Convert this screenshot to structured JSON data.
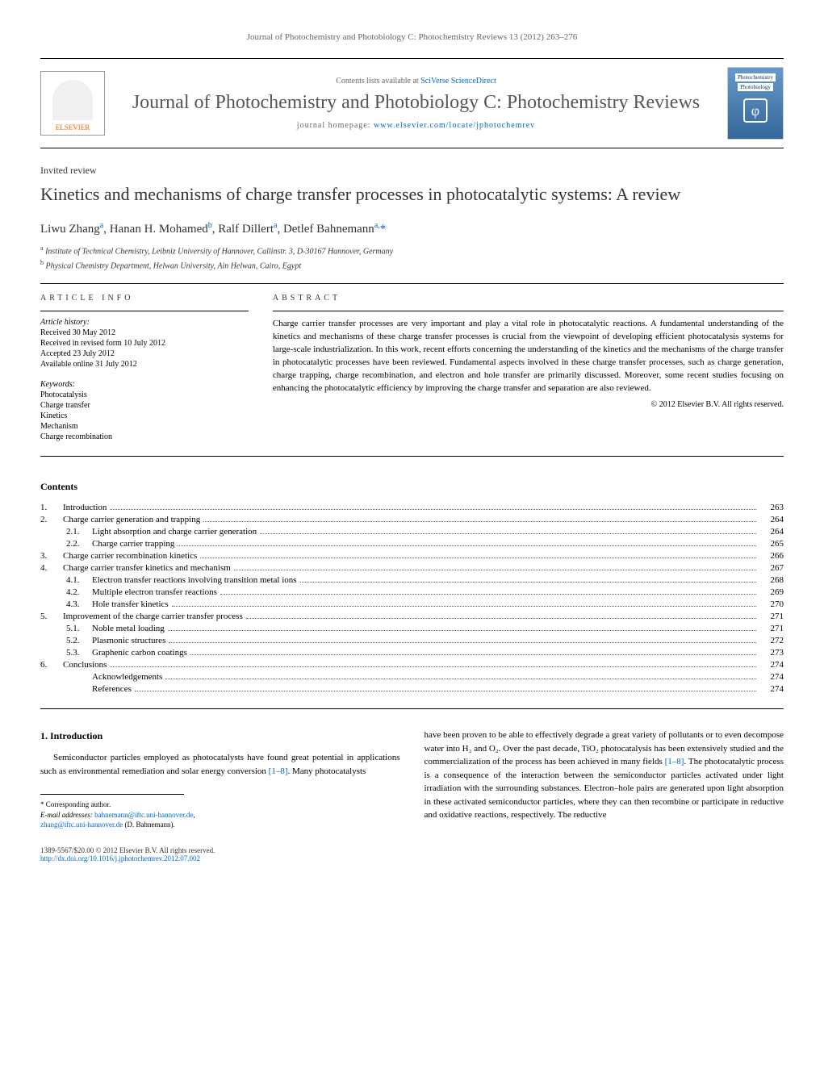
{
  "header": {
    "citation": "Journal of Photochemistry and Photobiology C: Photochemistry Reviews 13 (2012) 263–276",
    "contents_prefix": "Contents lists available at ",
    "contents_link": "SciVerse ScienceDirect",
    "journal_title": "Journal of Photochemistry and Photobiology C: Photochemistry Reviews",
    "homepage_prefix": "journal homepage: ",
    "homepage_link": "www.elsevier.com/locate/jphotochemrev",
    "publisher": "ELSEVIER",
    "cover_line1": "Photochemistry",
    "cover_line2": "Photobiology"
  },
  "article": {
    "type": "Invited review",
    "title": "Kinetics and mechanisms of charge transfer processes in photocatalytic systems: A review",
    "authors_html": "Liwu Zhang<sup>a</sup>, Hanan H. Mohamed<sup>b</sup>, Ralf Dillert<sup>a</sup>, Detlef Bahnemann<sup>a,</sup><span class='asterisk'>*</span>",
    "affiliations": [
      {
        "sup": "a",
        "text": "Institute of Technical Chemistry, Leibniz University of Hannover, Callinstr. 3, D-30167 Hannover, Germany"
      },
      {
        "sup": "b",
        "text": "Physical Chemistry Department, Helwan University, Ain Helwan, Cairo, Egypt"
      }
    ]
  },
  "info": {
    "heading": "ARTICLE INFO",
    "history_label": "Article history:",
    "history": [
      "Received 30 May 2012",
      "Received in revised form 10 July 2012",
      "Accepted 23 July 2012",
      "Available online 31 July 2012"
    ],
    "keywords_label": "Keywords:",
    "keywords": [
      "Photocatalysis",
      "Charge transfer",
      "Kinetics",
      "Mechanism",
      "Charge recombination"
    ]
  },
  "abstract": {
    "heading": "ABSTRACT",
    "text": "Charge carrier transfer processes are very important and play a vital role in photocatalytic reactions. A fundamental understanding of the kinetics and mechanisms of these charge transfer processes is crucial from the viewpoint of developing efficient photocatalysis systems for large-scale industrialization. In this work, recent efforts concerning the understanding of the kinetics and the mechanisms of the charge transfer in photocatalytic processes have been reviewed. Fundamental aspects involved in these charge transfer processes, such as charge generation, charge trapping, charge recombination, and electron and hole transfer are primarily discussed. Moreover, some recent studies focusing on enhancing the photocatalytic efficiency by improving the charge transfer and separation are also reviewed.",
    "copyright": "© 2012 Elsevier B.V. All rights reserved."
  },
  "contents": {
    "heading": "Contents",
    "items": [
      {
        "num": "1.",
        "label": "Introduction",
        "page": "263"
      },
      {
        "num": "2.",
        "label": "Charge carrier generation and trapping",
        "page": "264"
      },
      {
        "num": "2.1.",
        "label": "Light absorption and charge carrier generation",
        "page": "264",
        "sub": true
      },
      {
        "num": "2.2.",
        "label": "Charge carrier trapping",
        "page": "265",
        "sub": true
      },
      {
        "num": "3.",
        "label": "Charge carrier recombination kinetics",
        "page": "266"
      },
      {
        "num": "4.",
        "label": "Charge carrier transfer kinetics and mechanism",
        "page": "267"
      },
      {
        "num": "4.1.",
        "label": "Electron transfer reactions involving transition metal ions",
        "page": "268",
        "sub": true
      },
      {
        "num": "4.2.",
        "label": "Multiple electron transfer reactions",
        "page": "269",
        "sub": true
      },
      {
        "num": "4.3.",
        "label": "Hole transfer kinetics",
        "page": "270",
        "sub": true
      },
      {
        "num": "5.",
        "label": "Improvement of the charge carrier transfer process",
        "page": "271"
      },
      {
        "num": "5.1.",
        "label": "Noble metal loading",
        "page": "271",
        "sub": true
      },
      {
        "num": "5.2.",
        "label": "Plasmonic structures",
        "page": "272",
        "sub": true
      },
      {
        "num": "5.3.",
        "label": "Graphenic carbon coatings",
        "page": "273",
        "sub": true
      },
      {
        "num": "6.",
        "label": "Conclusions",
        "page": "274"
      },
      {
        "num": "",
        "label": "Acknowledgements",
        "page": "274",
        "sub": true
      },
      {
        "num": "",
        "label": "References",
        "page": "274",
        "sub": true
      }
    ]
  },
  "body": {
    "section_heading": "1. Introduction",
    "col1_para": "Semiconductor particles employed as photocatalysts have found great potential in applications such as environmental remediation and solar energy conversion [1–8]. Many photocatalysts",
    "col2_para": "have been proven to be able to effectively degrade a great variety of pollutants or to even decompose water into H₂ and O₂. Over the past decade, TiO₂ photocatalysis has been extensively studied and the commercialization of the process has been achieved in many fields [1–8]. The photocatalytic process is a consequence of the interaction between the semiconductor particles activated under light irradiation with the surrounding substances. Electron–hole pairs are generated upon light absorption in these activated semiconductor particles, where they can then recombine or participate in reductive and oxidative reactions, respectively. The reductive"
  },
  "footnotes": {
    "corresponding": "* Corresponding author.",
    "email_label": "E-mail addresses: ",
    "email1": "bahnemann@iftc.uni-hannover.de",
    "email2": "zhang@iftc.uni-hannover.de",
    "email_author": " (D. Bahnemann)."
  },
  "footer": {
    "left_line1": "1389-5567/$20.00 © 2012 Elsevier B.V. All rights reserved.",
    "left_line2": "http://dx.doi.org/10.1016/j.jphotochemrev.2012.07.002"
  },
  "refs": {
    "r1": "[1–8]"
  }
}
